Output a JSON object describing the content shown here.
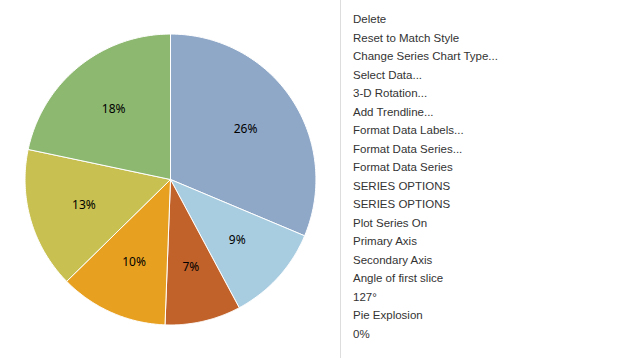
{
  "chart_data": {
    "type": "pie",
    "values": [
      26,
      9,
      7,
      10,
      13,
      18
    ],
    "value_labels": [
      "26%",
      "9%",
      "7%",
      "10%",
      "13%",
      "18%"
    ],
    "colors": [
      "#8FA8C8",
      "#A8CCE0",
      "#C0622A",
      "#E8A020",
      "#C8C050",
      "#8DB870"
    ],
    "data_labels": true,
    "annotations": [
      "Delete",
      "Reset to Match Style",
      "Change Series Chart Type...",
      "Select Data...",
      "3-D Rotation...",
      "Add Trendline...",
      "Format Data Labels...",
      "Format Data Series...",
      "Format Data Series",
      "SERIES OPTIONS",
      "SERIES OPTIONS",
      "Plot Series On",
      "Primary Axis",
      "Secondary Axis",
      "Angle of first slice",
      "127°",
      "Pie Explosion",
      "0%"
    ]
  }
}
